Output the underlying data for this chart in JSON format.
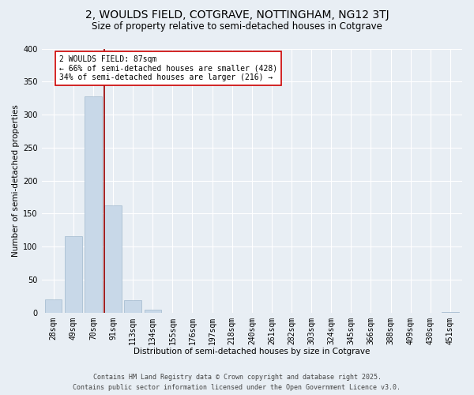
{
  "title": "2, WOULDS FIELD, COTGRAVE, NOTTINGHAM, NG12 3TJ",
  "subtitle": "Size of property relative to semi-detached houses in Cotgrave",
  "xlabel": "Distribution of semi-detached houses by size in Cotgrave",
  "ylabel": "Number of semi-detached properties",
  "bar_color": "#c8d8e8",
  "bar_edge_color": "#a0b8cc",
  "bin_labels": [
    "28sqm",
    "49sqm",
    "70sqm",
    "91sqm",
    "113sqm",
    "134sqm",
    "155sqm",
    "176sqm",
    "197sqm",
    "218sqm",
    "240sqm",
    "261sqm",
    "282sqm",
    "303sqm",
    "324sqm",
    "345sqm",
    "366sqm",
    "388sqm",
    "409sqm",
    "430sqm",
    "451sqm"
  ],
  "bar_values": [
    20,
    116,
    328,
    163,
    19,
    5,
    0,
    0,
    0,
    0,
    0,
    0,
    0,
    0,
    0,
    0,
    0,
    0,
    0,
    0,
    1
  ],
  "ylim": [
    0,
    400
  ],
  "yticks": [
    0,
    50,
    100,
    150,
    200,
    250,
    300,
    350,
    400
  ],
  "annotation_title": "2 WOULDS FIELD: 87sqm",
  "annotation_line1": "← 66% of semi-detached houses are smaller (428)",
  "annotation_line2": "34% of semi-detached houses are larger (216) →",
  "annotation_box_color": "#ffffff",
  "annotation_box_edge": "#cc0000",
  "vline_color": "#990000",
  "background_color": "#e8eef4",
  "grid_color": "#ffffff",
  "footer_line1": "Contains HM Land Registry data © Crown copyright and database right 2025.",
  "footer_line2": "Contains public sector information licensed under the Open Government Licence v3.0.",
  "title_fontsize": 10,
  "subtitle_fontsize": 8.5,
  "axis_label_fontsize": 7.5,
  "tick_fontsize": 7,
  "annotation_fontsize": 7,
  "footer_fontsize": 6
}
